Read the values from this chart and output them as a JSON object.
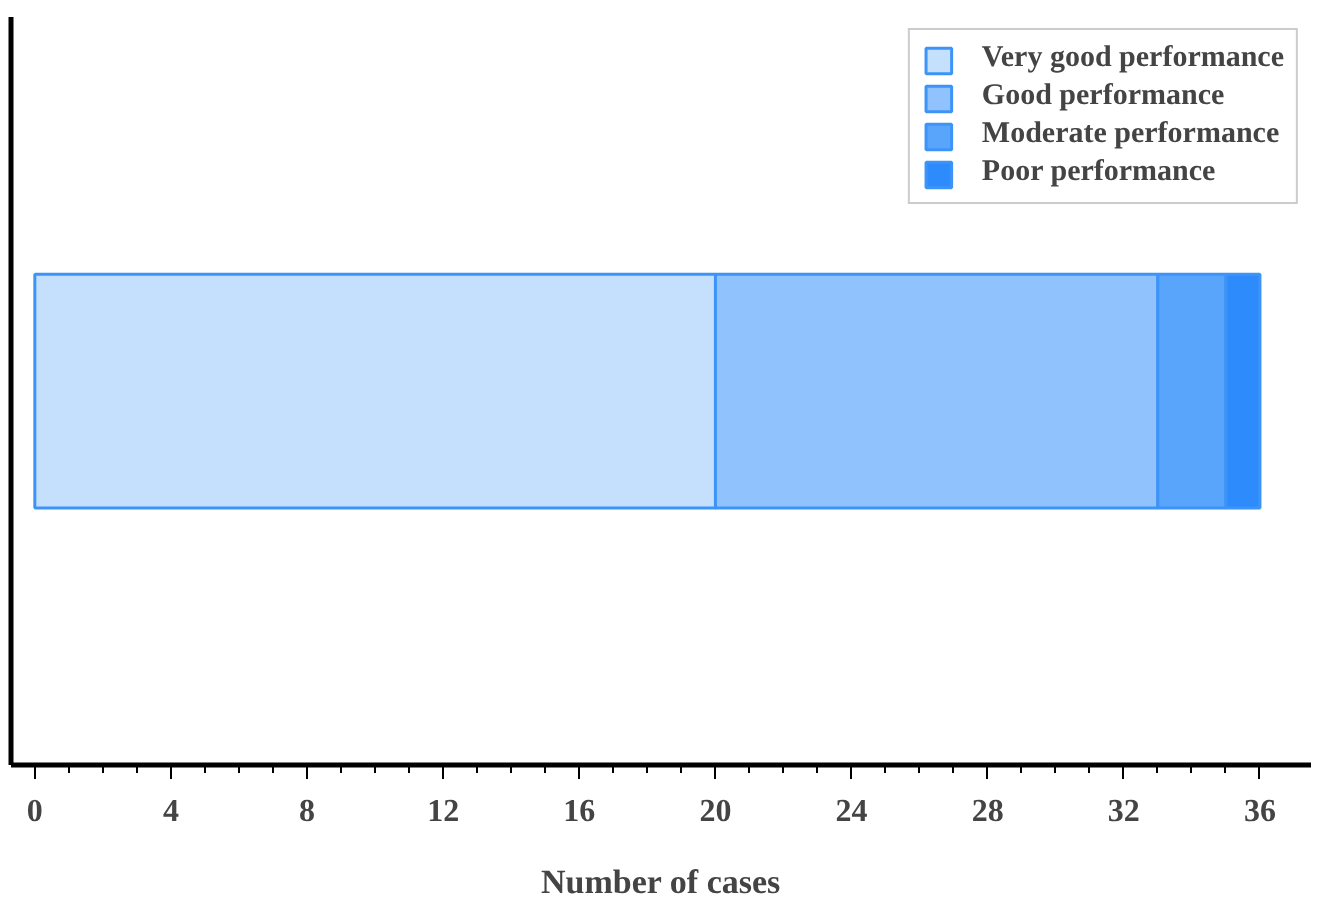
{
  "chart_data": {
    "type": "bar",
    "orientation": "horizontal",
    "stacked": true,
    "categories": [
      null
    ],
    "xlabel": "Number of cases",
    "series": [
      {
        "name": "Very good performance",
        "color": "#c5e0fd",
        "values": [
          20
        ]
      },
      {
        "name": "Good performance",
        "color": "#90c3fd",
        "values": [
          13
        ]
      },
      {
        "name": "Moderate performance",
        "color": "#5aa5fc",
        "values": [
          2
        ]
      },
      {
        "name": "Poor performance",
        "color": "#2e8bfc",
        "values": [
          1
        ]
      }
    ],
    "xlim": [
      -0.7,
      37.5
    ],
    "xticks": [
      0,
      4,
      8,
      12,
      16,
      20,
      24,
      28,
      32,
      36
    ],
    "grid": false,
    "legend": "top right"
  }
}
